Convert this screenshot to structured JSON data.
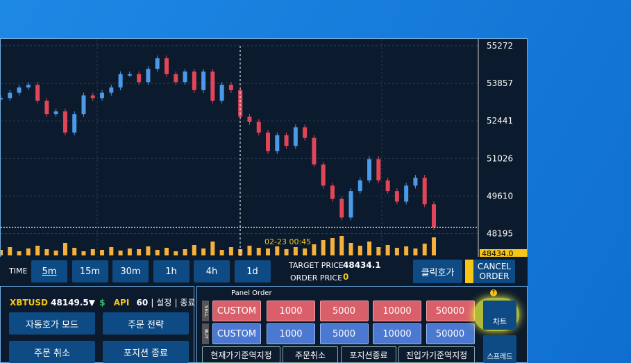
{
  "chart": {
    "type": "candlestick",
    "ylim": [
      48000,
      55530
    ],
    "yticks": [
      55272,
      53857,
      52441,
      51026,
      49610,
      48195
    ],
    "closes": [
      53300,
      53500,
      53700,
      53800,
      53200,
      52700,
      52800,
      52000,
      52700,
      53400,
      53300,
      53500,
      53700,
      54200,
      54200,
      53900,
      54400,
      54800,
      54200,
      53900,
      54300,
      53600,
      54300,
      53200,
      53800,
      53600,
      52600,
      52400,
      52000,
      51300,
      51900,
      51500,
      52200,
      51800,
      50800,
      50000,
      49500,
      48800,
      49800,
      50200,
      51000,
      50200,
      49800,
      49400,
      50000,
      50300,
      49300,
      48434
    ],
    "volumes": [
      8,
      12,
      6,
      10,
      14,
      9,
      7,
      18,
      11,
      6,
      9,
      8,
      12,
      7,
      10,
      9,
      13,
      8,
      11,
      6,
      9,
      15,
      10,
      20,
      8,
      12,
      9,
      14,
      11,
      10,
      13,
      9,
      12,
      10,
      16,
      22,
      25,
      28,
      18,
      14,
      20,
      12,
      15,
      11,
      13,
      10,
      17,
      26
    ],
    "crosshair_time": "02-23 00:45",
    "last_price_tag": "48434.0"
  },
  "toolbar": {
    "time_label": "TIME",
    "timeframes": [
      "5m",
      "15m",
      "30m",
      "1h",
      "4h",
      "1d"
    ],
    "target_price_label": "TARGET PRICE",
    "target_price": "48434.1",
    "order_price_label": "ORDER PRICE",
    "order_price": "0",
    "click_order": "클릭호가",
    "cancel_order": [
      "CANCEL",
      "ORDER"
    ]
  },
  "left_panel": {
    "symbol": "XBTUSD",
    "price": "48149.5▼",
    "api_label": "API",
    "api_value": "60",
    "settings": "설정",
    "exit": "종료",
    "buttons": [
      "자동호가 모드",
      "주문 전략",
      "주문 취소",
      "포지션 종료"
    ]
  },
  "panel_order": {
    "title": "Panel Order",
    "sell_label": "SELL",
    "buy_label": "BUY",
    "sell": [
      "CUSTOM",
      "1000",
      "5000",
      "10000",
      "50000"
    ],
    "buy": [
      "CUSTOM",
      "1000",
      "5000",
      "10000",
      "50000"
    ],
    "bottom": [
      "현재가기준역지정",
      "주문취소",
      "포지션종료",
      "진입가기준역지정"
    ],
    "side": [
      "차트",
      "스프레드"
    ]
  }
}
